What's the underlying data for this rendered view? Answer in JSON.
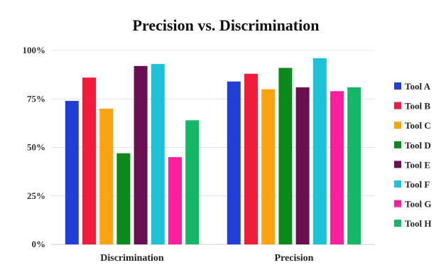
{
  "chart_data": {
    "type": "bar",
    "title": "Precision vs. Discrimination",
    "categories": [
      "Discrimination",
      "Precision"
    ],
    "ylim": [
      0,
      100
    ],
    "yticks": [
      0,
      25,
      50,
      75,
      100
    ],
    "ytick_labels": [
      "0%",
      "25%",
      "50%",
      "75%",
      "100%"
    ],
    "grid": true,
    "legend_position": "right",
    "series": [
      {
        "name": "Tool A",
        "color": "#1f3fd8",
        "values": [
          74,
          84
        ]
      },
      {
        "name": "Tool B",
        "color": "#f21c3a",
        "values": [
          86,
          88
        ]
      },
      {
        "name": "Tool C",
        "color": "#fba40f",
        "values": [
          70,
          80
        ]
      },
      {
        "name": "Tool D",
        "color": "#0a8a1a",
        "values": [
          47,
          91
        ]
      },
      {
        "name": "Tool E",
        "color": "#6a0f52",
        "values": [
          92,
          81
        ]
      },
      {
        "name": "Tool F",
        "color": "#1cc3d8",
        "values": [
          93,
          96
        ]
      },
      {
        "name": "Tool G",
        "color": "#ff1ea0",
        "values": [
          45,
          79
        ]
      },
      {
        "name": "Tool H",
        "color": "#12b865",
        "values": [
          64,
          81
        ]
      }
    ]
  }
}
